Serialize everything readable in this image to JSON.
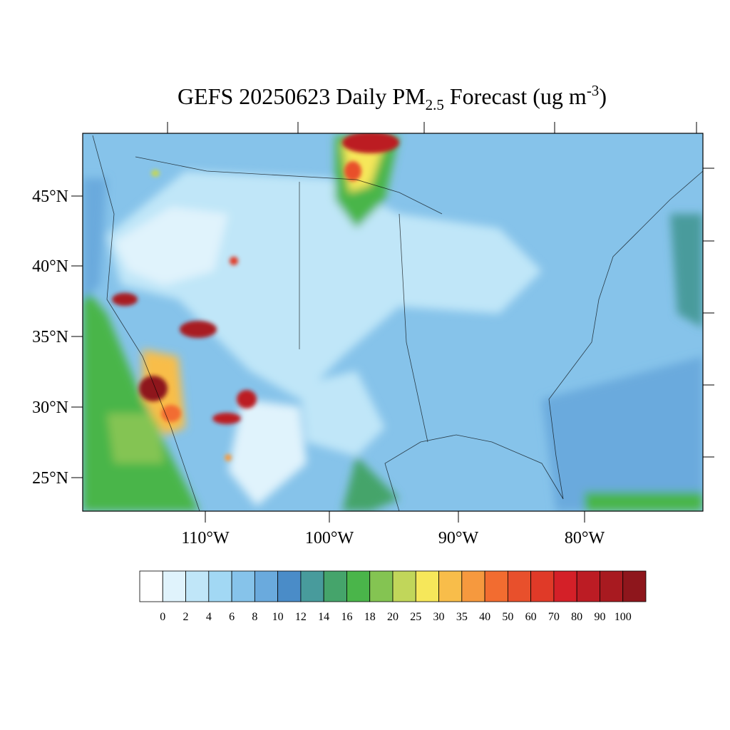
{
  "title": {
    "main": "GEFS 20250623 Daily PM",
    "subscript": "2.5",
    "middle": " Forecast (ug m",
    "superscript": "-3",
    "end": ")"
  },
  "lat_labels": [
    "45°N",
    "40°N",
    "35°N",
    "30°N",
    "25°N"
  ],
  "lon_labels": [
    "110°W",
    "100°W",
    "90°W",
    "80°W"
  ],
  "colorbar": {
    "levels": [
      0,
      2,
      4,
      6,
      8,
      10,
      12,
      14,
      16,
      18,
      20,
      25,
      30,
      35,
      40,
      50,
      60,
      70,
      80,
      90,
      100
    ],
    "colors": [
      "#ffffff",
      "#e0f3fc",
      "#c0e6f8",
      "#a2d8f4",
      "#86c3ea",
      "#6aaadd",
      "#4a8cc8",
      "#489b9c",
      "#45a46b",
      "#4ab54a",
      "#84c452",
      "#c1d65a",
      "#f6e75a",
      "#f8bd4a",
      "#f6993e",
      "#f26c30",
      "#e8502c",
      "#e03a28",
      "#d42028",
      "#bc1c24",
      "#a81a20",
      "#8e161c"
    ]
  }
}
